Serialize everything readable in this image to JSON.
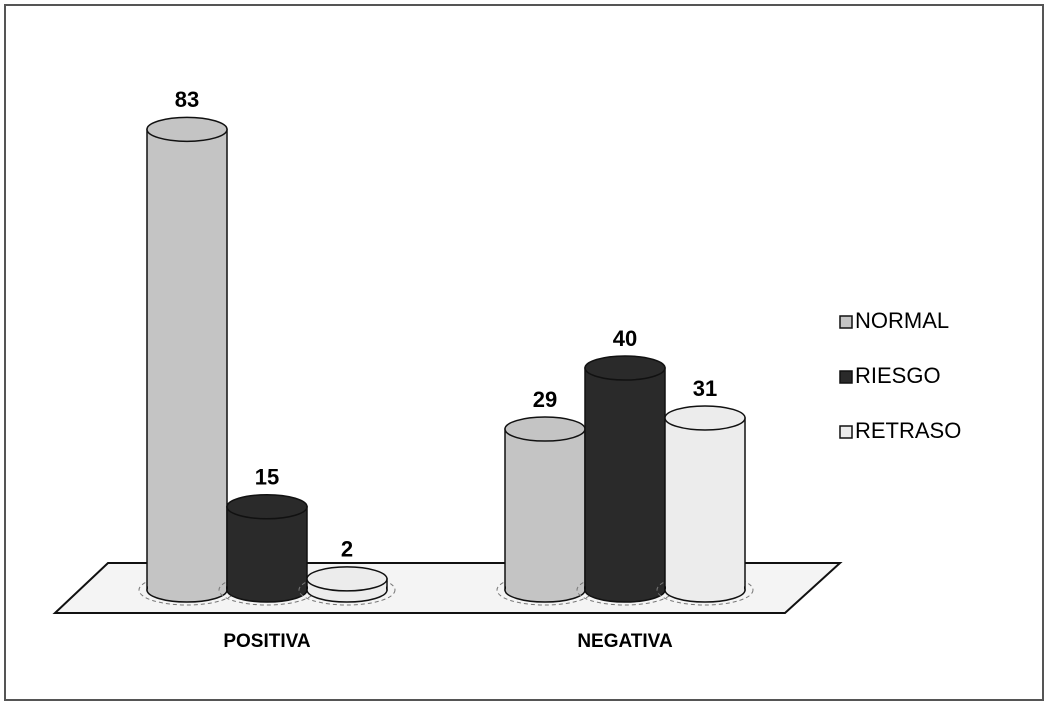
{
  "chart_data": {
    "type": "bar3d",
    "categories": [
      "POSITIVA",
      "NEGATIVA"
    ],
    "series": [
      {
        "name": "NORMAL",
        "color": "#c4c4c4",
        "values": [
          83,
          29
        ]
      },
      {
        "name": "RIESGO",
        "color": "#2a2a2a",
        "values": [
          15,
          40
        ]
      },
      {
        "name": "RETRASO",
        "color": "#ececec",
        "values": [
          2,
          31
        ]
      }
    ],
    "legend": "right"
  }
}
